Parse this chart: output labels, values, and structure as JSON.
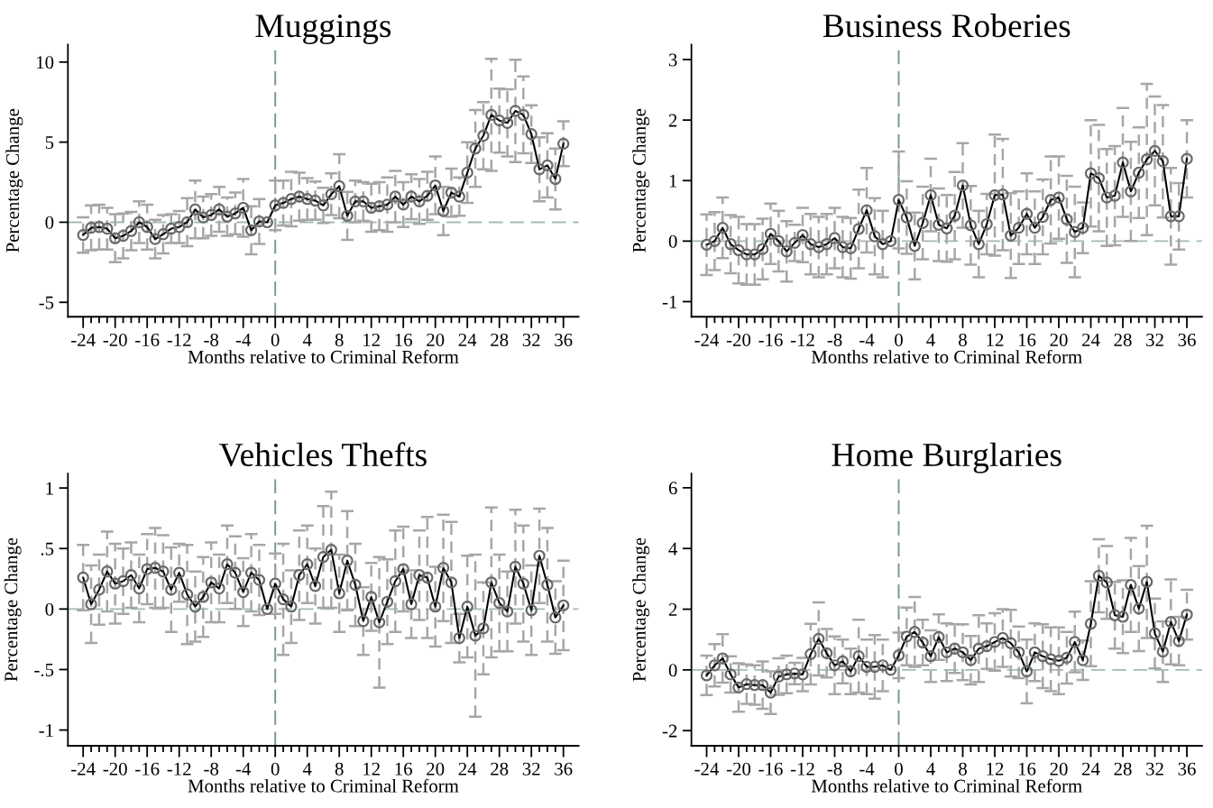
{
  "chart_data": [
    {
      "type": "line",
      "title": "Muggings",
      "xlabel": "Months relative to Criminal Reform",
      "ylabel": "Percentage Change",
      "x": [
        -24,
        -23,
        -22,
        -21,
        -20,
        -19,
        -18,
        -17,
        -16,
        -15,
        -14,
        -13,
        -12,
        -11,
        -10,
        -9,
        -8,
        -7,
        -6,
        -5,
        -4,
        -3,
        -2,
        -1,
        0,
        1,
        2,
        3,
        4,
        5,
        6,
        7,
        8,
        9,
        10,
        11,
        12,
        13,
        14,
        15,
        16,
        17,
        18,
        19,
        20,
        21,
        22,
        23,
        24,
        25,
        26,
        27,
        28,
        29,
        30,
        31,
        32,
        33,
        34,
        35,
        36
      ],
      "series": [
        {
          "color": "#000000",
          "values": [
            -0.8,
            -0.35,
            -0.3,
            -0.4,
            -1.0,
            -0.85,
            -0.55,
            0.0,
            -0.3,
            -1.05,
            -0.75,
            -0.4,
            -0.3,
            0.0,
            0.8,
            0.3,
            0.45,
            0.8,
            0.35,
            0.55,
            0.9,
            -0.5,
            0.05,
            0.0,
            1.05,
            1.2,
            1.45,
            1.6,
            1.45,
            1.35,
            1.05,
            1.75,
            2.25,
            0.4,
            1.3,
            1.3,
            0.9,
            1.0,
            1.1,
            1.6,
            1.1,
            1.6,
            1.3,
            1.65,
            2.3,
            0.7,
            1.85,
            1.6,
            3.1,
            4.6,
            5.4,
            6.7,
            6.35,
            6.2,
            6.95,
            6.7,
            5.5,
            3.3,
            3.55,
            2.7,
            4.9
          ],
          "errors": [
            1.1,
            1.4,
            1.4,
            1.3,
            1.5,
            1.4,
            1.2,
            1.3,
            1.4,
            1.2,
            1.2,
            0.9,
            1.0,
            1.5,
            1.8,
            1.3,
            1.3,
            1.4,
            1.2,
            1.3,
            1.8,
            1.5,
            1.4,
            null,
            1.55,
            1.4,
            1.7,
            1.5,
            1.3,
            1.2,
            1.1,
            1.3,
            2.0,
            1.5,
            1.3,
            1.2,
            1.5,
            1.5,
            1.7,
            1.6,
            1.4,
            1.4,
            1.4,
            1.5,
            1.8,
            1.5,
            1.5,
            1.2,
            1.9,
            2.4,
            2.1,
            3.5,
            2.0,
            2.1,
            3.2,
            2.4,
            1.8,
            2.0,
            2.0,
            1.9,
            1.4
          ]
        }
      ],
      "marker": "circle",
      "line_style": "solid",
      "xlim": [
        -25.9,
        37.9
      ],
      "xticks": [
        -24,
        {
          "value": -23,
          "label": null
        },
        {
          "value": -22,
          "label": null
        },
        {
          "value": -21,
          "label": null
        },
        -20,
        {
          "value": -19,
          "label": null
        },
        {
          "value": -18,
          "label": null
        },
        {
          "value": -17,
          "label": null
        },
        -16,
        {
          "value": -15,
          "label": null
        },
        {
          "value": -14,
          "label": null
        },
        {
          "value": -13,
          "label": null
        },
        -12,
        {
          "value": -11,
          "label": null
        },
        {
          "value": -10,
          "label": null
        },
        {
          "value": -9,
          "label": null
        },
        -8,
        {
          "value": -7,
          "label": null
        },
        {
          "value": -6,
          "label": null
        },
        {
          "value": -5,
          "label": null
        },
        -4,
        {
          "value": -3,
          "label": null
        },
        {
          "value": -2,
          "label": null
        },
        {
          "value": -1,
          "label": null
        },
        0,
        {
          "value": 1,
          "label": null
        },
        {
          "value": 2,
          "label": null
        },
        {
          "value": 3,
          "label": null
        },
        4,
        {
          "value": 5,
          "label": null
        },
        {
          "value": 6,
          "label": null
        },
        {
          "value": 7,
          "label": null
        },
        8,
        {
          "value": 9,
          "label": null
        },
        {
          "value": 10,
          "label": null
        },
        {
          "value": 11,
          "label": null
        },
        12,
        {
          "value": 13,
          "label": null
        },
        {
          "value": 14,
          "label": null
        },
        {
          "value": 15,
          "label": null
        },
        16,
        {
          "value": 17,
          "label": null
        },
        {
          "value": 18,
          "label": null
        },
        {
          "value": 19,
          "label": null
        },
        20,
        {
          "value": 21,
          "label": null
        },
        {
          "value": 22,
          "label": null
        },
        {
          "value": 23,
          "label": null
        },
        24,
        {
          "value": 25,
          "label": null
        },
        {
          "value": 26,
          "label": null
        },
        {
          "value": 27,
          "label": null
        },
        28,
        {
          "value": 29,
          "label": null
        },
        {
          "value": 30,
          "label": null
        },
        {
          "value": 31,
          "label": null
        },
        32,
        {
          "value": 33,
          "label": null
        },
        {
          "value": 34,
          "label": null
        },
        {
          "value": 35,
          "label": null
        },
        36
      ],
      "ylim": [
        -5.9,
        11.1
      ],
      "yticks": [
        -5,
        0,
        5,
        10
      ],
      "ref_lines": [
        {
          "axis": "x",
          "value": 0,
          "color": "#7a968e",
          "line_style": "dashed"
        },
        {
          "axis": "y",
          "value": 0,
          "color": "#a3bab3",
          "line_style": "dashed"
        }
      ]
    },
    {
      "type": "line",
      "title": "Business Roberies",
      "xlabel": "Months relative to Criminal Reform",
      "ylabel": "Percentage Change",
      "x": [
        -24,
        -23,
        -22,
        -21,
        -20,
        -19,
        -18,
        -17,
        -16,
        -15,
        -14,
        -13,
        -12,
        -11,
        -10,
        -9,
        -8,
        -7,
        -6,
        -5,
        -4,
        -3,
        -2,
        -1,
        0,
        1,
        2,
        3,
        4,
        5,
        6,
        7,
        8,
        9,
        10,
        11,
        12,
        13,
        14,
        15,
        16,
        17,
        18,
        19,
        20,
        21,
        22,
        23,
        24,
        25,
        26,
        27,
        28,
        29,
        30,
        31,
        32,
        33,
        34,
        35,
        36
      ],
      "series": [
        {
          "color": "#000000",
          "values": [
            -0.06,
            0.0,
            0.22,
            -0.05,
            -0.15,
            -0.22,
            -0.22,
            -0.13,
            0.12,
            0.0,
            -0.17,
            -0.03,
            0.1,
            -0.05,
            -0.1,
            -0.05,
            0.05,
            -0.1,
            -0.12,
            0.2,
            0.51,
            0.08,
            -0.05,
            0.0,
            0.68,
            0.39,
            -0.08,
            0.3,
            0.76,
            0.27,
            0.21,
            0.42,
            0.92,
            0.26,
            -0.05,
            0.28,
            0.76,
            0.77,
            0.09,
            0.22,
            0.45,
            0.22,
            0.4,
            0.68,
            0.72,
            0.36,
            0.15,
            0.22,
            1.12,
            1.04,
            0.72,
            0.75,
            1.3,
            0.82,
            1.13,
            1.35,
            1.49,
            1.32,
            0.41,
            0.41,
            1.36
          ],
          "errors": [
            0.5,
            0.48,
            0.5,
            0.48,
            0.55,
            0.5,
            0.5,
            0.5,
            0.5,
            0.5,
            0.5,
            0.3,
            0.45,
            0.5,
            0.5,
            0.5,
            0.5,
            0.5,
            0.5,
            0.65,
            0.7,
            0.63,
            0.55,
            null,
            0.8,
            0.6,
            0.55,
            0.6,
            0.6,
            0.6,
            0.55,
            0.72,
            0.7,
            0.65,
            0.55,
            0.5,
            1.0,
            0.92,
            0.7,
            0.6,
            0.67,
            0.6,
            0.62,
            0.72,
            0.68,
            0.72,
            0.75,
            0.42,
            0.88,
            0.88,
            0.8,
            0.82,
            0.9,
            0.82,
            0.75,
            1.25,
            0.9,
            0.93,
            0.8,
            0.55,
            0.64
          ]
        }
      ],
      "marker": "circle",
      "line_style": "solid",
      "xlim": [
        -25.9,
        37.9
      ],
      "xticks": [
        -24,
        {
          "value": -23,
          "label": null
        },
        {
          "value": -22,
          "label": null
        },
        {
          "value": -21,
          "label": null
        },
        -20,
        {
          "value": -19,
          "label": null
        },
        {
          "value": -18,
          "label": null
        },
        {
          "value": -17,
          "label": null
        },
        -16,
        {
          "value": -15,
          "label": null
        },
        {
          "value": -14,
          "label": null
        },
        {
          "value": -13,
          "label": null
        },
        -12,
        {
          "value": -11,
          "label": null
        },
        {
          "value": -10,
          "label": null
        },
        {
          "value": -9,
          "label": null
        },
        -8,
        {
          "value": -7,
          "label": null
        },
        {
          "value": -6,
          "label": null
        },
        {
          "value": -5,
          "label": null
        },
        -4,
        {
          "value": -3,
          "label": null
        },
        {
          "value": -2,
          "label": null
        },
        {
          "value": -1,
          "label": null
        },
        0,
        {
          "value": 1,
          "label": null
        },
        {
          "value": 2,
          "label": null
        },
        {
          "value": 3,
          "label": null
        },
        4,
        {
          "value": 5,
          "label": null
        },
        {
          "value": 6,
          "label": null
        },
        {
          "value": 7,
          "label": null
        },
        8,
        {
          "value": 9,
          "label": null
        },
        {
          "value": 10,
          "label": null
        },
        {
          "value": 11,
          "label": null
        },
        12,
        {
          "value": 13,
          "label": null
        },
        {
          "value": 14,
          "label": null
        },
        {
          "value": 15,
          "label": null
        },
        16,
        {
          "value": 17,
          "label": null
        },
        {
          "value": 18,
          "label": null
        },
        {
          "value": 19,
          "label": null
        },
        20,
        {
          "value": 21,
          "label": null
        },
        {
          "value": 22,
          "label": null
        },
        {
          "value": 23,
          "label": null
        },
        24,
        {
          "value": 25,
          "label": null
        },
        {
          "value": 26,
          "label": null
        },
        {
          "value": 27,
          "label": null
        },
        28,
        {
          "value": 29,
          "label": null
        },
        {
          "value": 30,
          "label": null
        },
        {
          "value": 31,
          "label": null
        },
        32,
        {
          "value": 33,
          "label": null
        },
        {
          "value": 34,
          "label": null
        },
        {
          "value": 35,
          "label": null
        },
        36
      ],
      "ylim": [
        -1.25,
        3.25
      ],
      "yticks": [
        -1,
        0,
        1,
        2,
        3
      ],
      "ref_lines": [
        {
          "axis": "x",
          "value": 0,
          "color": "#7a968e",
          "line_style": "dashed"
        },
        {
          "axis": "y",
          "value": 0,
          "color": "#a3bab3",
          "line_style": "dashed"
        }
      ]
    },
    {
      "type": "line",
      "title": "Vehicles Thefts",
      "xlabel": "Months relative to Criminal Reform",
      "ylabel": "Percentage Change",
      "x": [
        -24,
        -23,
        -22,
        -21,
        -20,
        -19,
        -18,
        -17,
        -16,
        -15,
        -14,
        -13,
        -12,
        -11,
        -10,
        -9,
        -8,
        -7,
        -6,
        -5,
        -4,
        -3,
        -2,
        -1,
        0,
        1,
        2,
        3,
        4,
        5,
        6,
        7,
        8,
        9,
        10,
        11,
        12,
        13,
        14,
        15,
        16,
        17,
        18,
        19,
        20,
        21,
        22,
        23,
        24,
        25,
        26,
        27,
        28,
        29,
        30,
        31,
        32,
        33,
        34,
        35,
        36
      ],
      "series": [
        {
          "color": "#000000",
          "values": [
            0.26,
            0.04,
            0.16,
            0.31,
            0.21,
            0.23,
            0.28,
            0.17,
            0.33,
            0.34,
            0.31,
            0.16,
            0.3,
            0.12,
            0.02,
            0.1,
            0.22,
            0.17,
            0.37,
            0.3,
            0.14,
            0.3,
            0.24,
            0.0,
            0.21,
            0.08,
            0.02,
            0.28,
            0.37,
            0.19,
            0.43,
            0.49,
            0.13,
            0.4,
            0.2,
            -0.1,
            0.1,
            -0.11,
            0.06,
            0.23,
            0.33,
            0.04,
            0.28,
            0.26,
            0.02,
            0.34,
            0.22,
            -0.24,
            0.02,
            -0.22,
            -0.16,
            0.22,
            0.05,
            -0.02,
            0.35,
            0.21,
            -0.01,
            0.44,
            0.2,
            -0.07,
            0.03
          ],
          "errors": [
            0.27,
            0.32,
            0.29,
            0.33,
            0.33,
            0.27,
            0.27,
            0.28,
            0.29,
            0.33,
            0.3,
            0.35,
            0.24,
            0.41,
            0.29,
            0.33,
            0.33,
            0.28,
            0.32,
            0.3,
            0.28,
            0.32,
            0.29,
            null,
            0.25,
            0.46,
            0.3,
            0.37,
            0.32,
            0.31,
            0.42,
            0.48,
            0.32,
            0.41,
            0.34,
            0.28,
            0.28,
            0.54,
            0.35,
            0.42,
            0.35,
            0.28,
            0.37,
            0.5,
            0.33,
            0.44,
            0.5,
            0.2,
            0.42,
            0.67,
            0.38,
            0.62,
            0.4,
            0.33,
            0.47,
            0.48,
            0.37,
            0.39,
            0.47,
            0.3,
            0.37
          ]
        }
      ],
      "marker": "circle",
      "line_style": "solid",
      "xlim": [
        -25.9,
        37.9
      ],
      "xticks": [
        -24,
        {
          "value": -23,
          "label": null
        },
        {
          "value": -22,
          "label": null
        },
        {
          "value": -21,
          "label": null
        },
        -20,
        {
          "value": -19,
          "label": null
        },
        {
          "value": -18,
          "label": null
        },
        {
          "value": -17,
          "label": null
        },
        -16,
        {
          "value": -15,
          "label": null
        },
        {
          "value": -14,
          "label": null
        },
        {
          "value": -13,
          "label": null
        },
        -12,
        {
          "value": -11,
          "label": null
        },
        {
          "value": -10,
          "label": null
        },
        {
          "value": -9,
          "label": null
        },
        -8,
        {
          "value": -7,
          "label": null
        },
        {
          "value": -6,
          "label": null
        },
        {
          "value": -5,
          "label": null
        },
        -4,
        {
          "value": -3,
          "label": null
        },
        {
          "value": -2,
          "label": null
        },
        {
          "value": -1,
          "label": null
        },
        0,
        {
          "value": 1,
          "label": null
        },
        {
          "value": 2,
          "label": null
        },
        {
          "value": 3,
          "label": null
        },
        4,
        {
          "value": 5,
          "label": null
        },
        {
          "value": 6,
          "label": null
        },
        {
          "value": 7,
          "label": null
        },
        8,
        {
          "value": 9,
          "label": null
        },
        {
          "value": 10,
          "label": null
        },
        {
          "value": 11,
          "label": null
        },
        12,
        {
          "value": 13,
          "label": null
        },
        {
          "value": 14,
          "label": null
        },
        {
          "value": 15,
          "label": null
        },
        16,
        {
          "value": 17,
          "label": null
        },
        {
          "value": 18,
          "label": null
        },
        {
          "value": 19,
          "label": null
        },
        20,
        {
          "value": 21,
          "label": null
        },
        {
          "value": 22,
          "label": null
        },
        {
          "value": 23,
          "label": null
        },
        24,
        {
          "value": 25,
          "label": null
        },
        {
          "value": 26,
          "label": null
        },
        {
          "value": 27,
          "label": null
        },
        28,
        {
          "value": 29,
          "label": null
        },
        {
          "value": 30,
          "label": null
        },
        {
          "value": 31,
          "label": null
        },
        32,
        {
          "value": 33,
          "label": null
        },
        {
          "value": 34,
          "label": null
        },
        {
          "value": 35,
          "label": null
        },
        36
      ],
      "ylim": [
        -1.13,
        1.12
      ],
      "yticks": [
        -1,
        {
          "value": -0.5,
          "label": "-.5"
        },
        0,
        {
          "value": 0.5,
          "label": ".5"
        },
        1
      ],
      "ref_lines": [
        {
          "axis": "x",
          "value": 0,
          "color": "#7a968e",
          "line_style": "dashed"
        },
        {
          "axis": "y",
          "value": 0,
          "color": "#a3bab3",
          "line_style": "dashed"
        }
      ]
    },
    {
      "type": "line",
      "title": "Home Burglaries",
      "xlabel": "Months relative to Criminal Reform",
      "ylabel": "Percentage Change",
      "x": [
        -24,
        -23,
        -22,
        -21,
        -20,
        -19,
        -18,
        -17,
        -16,
        -15,
        -14,
        -13,
        -12,
        -11,
        -10,
        -9,
        -8,
        -7,
        -6,
        -5,
        -4,
        -3,
        -2,
        -1,
        0,
        1,
        2,
        3,
        4,
        5,
        6,
        7,
        8,
        9,
        10,
        11,
        12,
        13,
        14,
        15,
        16,
        17,
        18,
        19,
        20,
        21,
        22,
        23,
        24,
        25,
        26,
        27,
        28,
        29,
        30,
        31,
        32,
        33,
        34,
        35,
        36
      ],
      "series": [
        {
          "color": "#000000",
          "values": [
            -0.18,
            0.15,
            0.38,
            -0.15,
            -0.58,
            -0.47,
            -0.5,
            -0.5,
            -0.75,
            -0.22,
            -0.15,
            -0.12,
            -0.15,
            0.52,
            1.02,
            0.55,
            0.15,
            0.28,
            -0.05,
            0.45,
            0.1,
            0.1,
            0.15,
            0.0,
            0.48,
            1.1,
            1.25,
            0.9,
            0.45,
            1.08,
            0.58,
            0.7,
            0.58,
            0.32,
            0.7,
            0.78,
            0.92,
            1.05,
            0.88,
            0.58,
            -0.05,
            0.58,
            0.45,
            0.35,
            0.3,
            0.4,
            0.92,
            0.32,
            1.52,
            3.1,
            2.88,
            1.8,
            1.75,
            2.8,
            2.02,
            2.9,
            1.2,
            0.6,
            1.58,
            0.95,
            1.82
          ],
          "errors": [
            0.65,
            0.7,
            0.8,
            0.6,
            0.8,
            0.65,
            0.65,
            0.78,
            0.7,
            0.6,
            0.62,
            0.35,
            0.55,
            1.0,
            1.2,
            0.8,
            0.95,
            0.72,
            0.75,
            1.2,
            0.9,
            1.05,
            0.85,
            null,
            0.75,
            0.95,
            1.15,
            0.75,
            0.85,
            0.75,
            0.95,
            0.8,
            0.92,
            0.8,
            1.1,
            0.75,
            0.95,
            0.95,
            1.1,
            0.85,
            1.05,
            0.95,
            1.05,
            1.05,
            1.1,
            0.85,
            1.0,
            0.65,
            1.4,
            1.2,
            1.2,
            1.1,
            1.2,
            1.55,
            1.4,
            1.85,
            1.15,
            1.0,
            1.4,
            0.8,
            0.82
          ]
        }
      ],
      "marker": "circle",
      "line_style": "solid",
      "xlim": [
        -25.9,
        37.9
      ],
      "xticks": [
        -24,
        {
          "value": -23,
          "label": null
        },
        {
          "value": -22,
          "label": null
        },
        {
          "value": -21,
          "label": null
        },
        -20,
        {
          "value": -19,
          "label": null
        },
        {
          "value": -18,
          "label": null
        },
        {
          "value": -17,
          "label": null
        },
        -16,
        {
          "value": -15,
          "label": null
        },
        {
          "value": -14,
          "label": null
        },
        {
          "value": -13,
          "label": null
        },
        -12,
        {
          "value": -11,
          "label": null
        },
        {
          "value": -10,
          "label": null
        },
        {
          "value": -9,
          "label": null
        },
        -8,
        {
          "value": -7,
          "label": null
        },
        {
          "value": -6,
          "label": null
        },
        {
          "value": -5,
          "label": null
        },
        -4,
        {
          "value": -3,
          "label": null
        },
        {
          "value": -2,
          "label": null
        },
        {
          "value": -1,
          "label": null
        },
        0,
        {
          "value": 1,
          "label": null
        },
        {
          "value": 2,
          "label": null
        },
        {
          "value": 3,
          "label": null
        },
        4,
        {
          "value": 5,
          "label": null
        },
        {
          "value": 6,
          "label": null
        },
        {
          "value": 7,
          "label": null
        },
        8,
        {
          "value": 9,
          "label": null
        },
        {
          "value": 10,
          "label": null
        },
        {
          "value": 11,
          "label": null
        },
        12,
        {
          "value": 13,
          "label": null
        },
        {
          "value": 14,
          "label": null
        },
        {
          "value": 15,
          "label": null
        },
        16,
        {
          "value": 17,
          "label": null
        },
        {
          "value": 18,
          "label": null
        },
        {
          "value": 19,
          "label": null
        },
        20,
        {
          "value": 21,
          "label": null
        },
        {
          "value": 22,
          "label": null
        },
        {
          "value": 23,
          "label": null
        },
        24,
        {
          "value": 25,
          "label": null
        },
        {
          "value": 26,
          "label": null
        },
        {
          "value": 27,
          "label": null
        },
        28,
        {
          "value": 29,
          "label": null
        },
        {
          "value": 30,
          "label": null
        },
        {
          "value": 31,
          "label": null
        },
        32,
        {
          "value": 33,
          "label": null
        },
        {
          "value": 34,
          "label": null
        },
        {
          "value": 35,
          "label": null
        },
        36
      ],
      "ylim": [
        -2.5,
        6.47
      ],
      "yticks": [
        -2,
        0,
        2,
        4,
        6
      ],
      "ref_lines": [
        {
          "axis": "x",
          "value": 0,
          "color": "#7a968e",
          "line_style": "dashed"
        },
        {
          "axis": "y",
          "value": 0,
          "color": "#a3bab3",
          "line_style": "dashed"
        }
      ]
    }
  ]
}
